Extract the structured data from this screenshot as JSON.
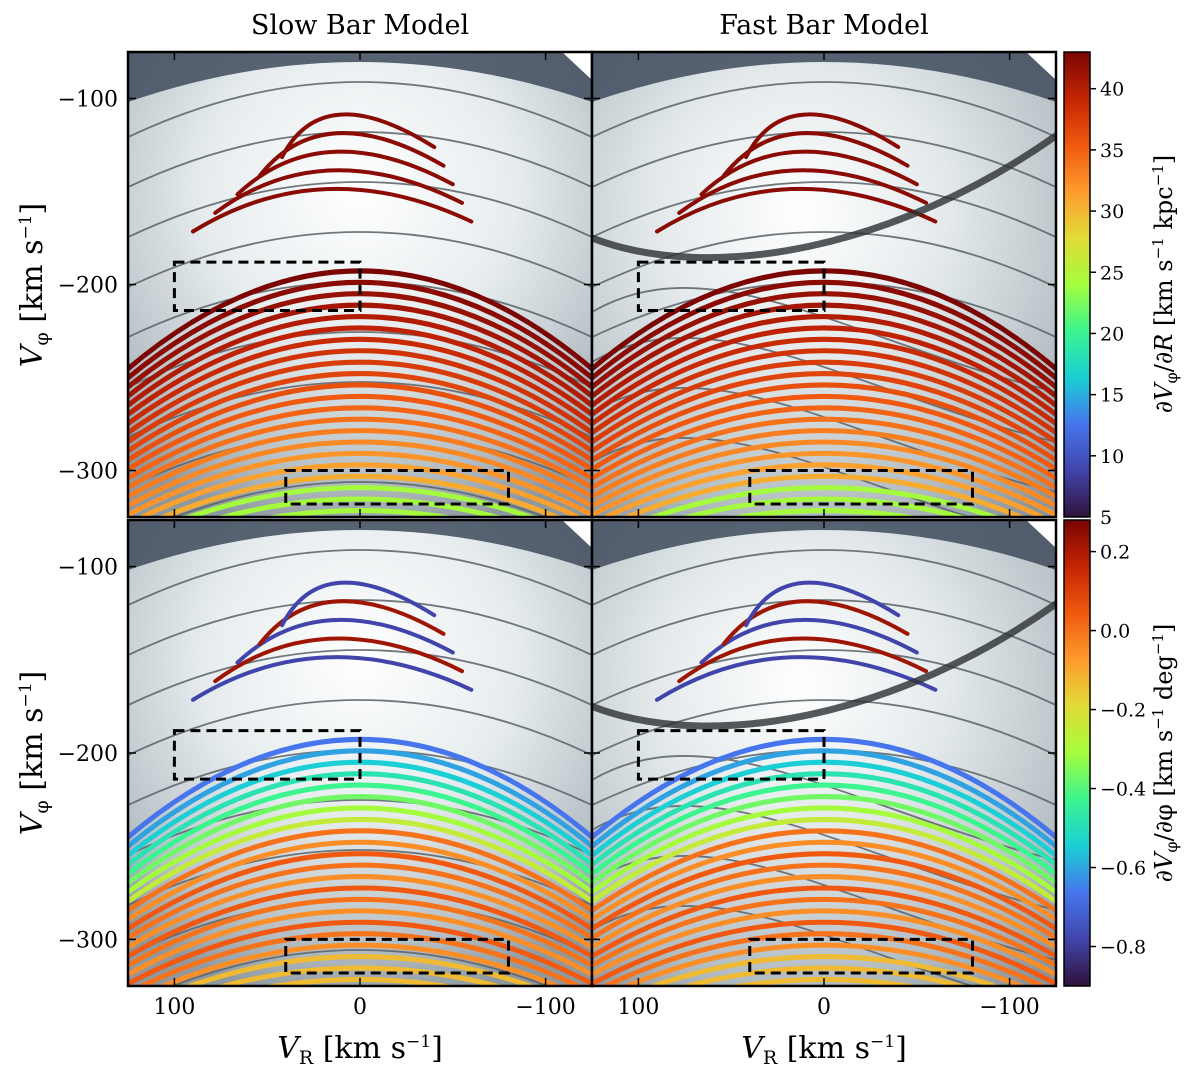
{
  "figure": {
    "columns": [
      {
        "id": "slow",
        "title": "Slow Bar Model"
      },
      {
        "id": "fast",
        "title": "Fast Bar Model"
      }
    ],
    "rows": [
      {
        "id": "top",
        "ylabel": "V_φ [km s^-1]"
      },
      {
        "id": "bottom",
        "ylabel": "V_φ [km s^-1]"
      }
    ],
    "xlabel": "V_R [km s^-1]"
  },
  "chart_data": [
    {
      "type": "scatter",
      "panel": "slow-top",
      "title": "Slow Bar Model",
      "xlabel": "V_R [km s^-1]",
      "ylabel": "V_φ [km s^-1]",
      "xlim": [
        125,
        -125
      ],
      "ylim": [
        -75,
        -325
      ],
      "xticks": [
        100,
        0,
        -100
      ],
      "xtick_labels": [
        "100",
        "0",
        "−100"
      ],
      "yticks": [
        -300,
        -200,
        -100
      ],
      "ytick_labels": [
        "−300",
        "−200",
        "−100"
      ],
      "color_quantity": "∂V_φ/∂R",
      "boxes": [
        {
          "x": [
            -80,
            40
          ],
          "y": [
            -318,
            -300
          ]
        },
        {
          "x": [
            0,
            100
          ],
          "y": [
            -214,
            -188
          ]
        }
      ]
    },
    {
      "type": "scatter",
      "panel": "fast-top",
      "title": "Fast Bar Model",
      "xlabel": "V_R [km s^-1]",
      "ylabel": "V_φ [km s^-1]",
      "xlim": [
        125,
        -125
      ],
      "ylim": [
        -75,
        -325
      ],
      "xticks": [
        100,
        0,
        -100
      ],
      "xtick_labels": [
        "100",
        "0",
        "−100"
      ],
      "yticks": [
        -300,
        -200,
        -100
      ],
      "ytick_labels": [
        "−300",
        "−200",
        "−100"
      ],
      "color_quantity": "∂V_φ/∂R",
      "boxes": [
        {
          "x": [
            -80,
            40
          ],
          "y": [
            -318,
            -300
          ]
        },
        {
          "x": [
            0,
            100
          ],
          "y": [
            -214,
            -188
          ]
        }
      ]
    },
    {
      "type": "scatter",
      "panel": "slow-bottom",
      "title": "",
      "xlabel": "V_R [km s^-1]",
      "ylabel": "V_φ [km s^-1]",
      "xlim": [
        125,
        -125
      ],
      "ylim": [
        -75,
        -325
      ],
      "xticks": [
        100,
        0,
        -100
      ],
      "xtick_labels": [
        "100",
        "0",
        "−100"
      ],
      "yticks": [
        -300,
        -200,
        -100
      ],
      "ytick_labels": [
        "−300",
        "−200",
        "−100"
      ],
      "color_quantity": "∂V_φ/∂φ",
      "boxes": [
        {
          "x": [
            -80,
            40
          ],
          "y": [
            -318,
            -300
          ]
        },
        {
          "x": [
            0,
            100
          ],
          "y": [
            -214,
            -188
          ]
        }
      ]
    },
    {
      "type": "scatter",
      "panel": "fast-bottom",
      "title": "",
      "xlabel": "V_R [km s^-1]",
      "ylabel": "V_φ [km s^-1]",
      "xlim": [
        125,
        -125
      ],
      "ylim": [
        -75,
        -325
      ],
      "xticks": [
        100,
        0,
        -100
      ],
      "xtick_labels": [
        "100",
        "0",
        "−100"
      ],
      "yticks": [
        -300,
        -200,
        -100
      ],
      "ytick_labels": [
        "−300",
        "−200",
        "−100"
      ],
      "color_quantity": "∂V_φ/∂φ",
      "boxes": [
        {
          "x": [
            -80,
            40
          ],
          "y": [
            -318,
            -300
          ]
        },
        {
          "x": [
            0,
            100
          ],
          "y": [
            -214,
            -188
          ]
        }
      ]
    }
  ],
  "colorbars": [
    {
      "id": "cb-top",
      "label": "∂V_φ/∂R [km s^-1 kpc^-1]",
      "range": [
        5,
        43
      ],
      "ticks": [
        10,
        15,
        20,
        25,
        30,
        35,
        40
      ],
      "tick_labels": [
        "10",
        "15",
        "20",
        "25",
        "30",
        "35",
        "40"
      ],
      "bottom_label": "5",
      "colormap": "turbo"
    },
    {
      "id": "cb-bottom",
      "label": "∂V_φ/∂φ [km s^-1 deg^-1]",
      "range": [
        -0.9,
        0.28
      ],
      "ticks": [
        -0.8,
        -0.6,
        -0.4,
        -0.2,
        0.0,
        0.2
      ],
      "tick_labels": [
        "−0.8",
        "−0.6",
        "−0.4",
        "−0.2",
        "0.0",
        "0.2"
      ],
      "colormap": "turbo"
    }
  ]
}
